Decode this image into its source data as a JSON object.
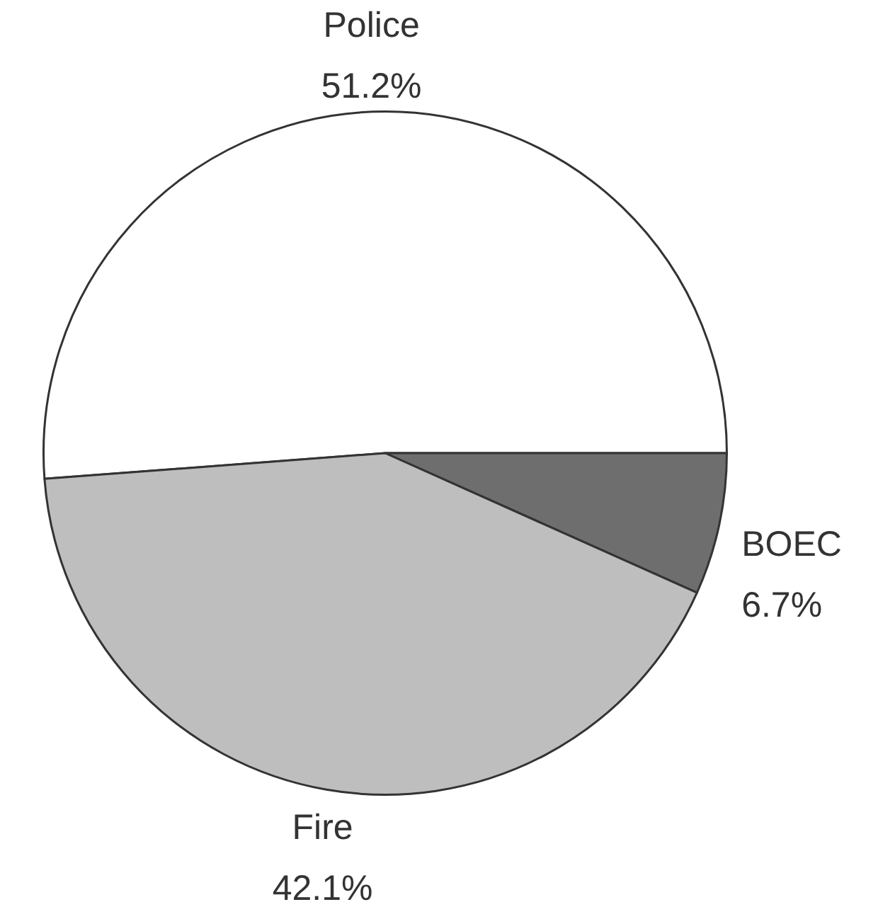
{
  "chart_data": {
    "type": "pie",
    "categories": [
      "Police",
      "BOEC",
      "Fire"
    ],
    "values": [
      51.2,
      6.7,
      42.1
    ],
    "colors": [
      "#ffffff",
      "#6e6e6e",
      "#bebebe"
    ],
    "value_labels": [
      "51.2%",
      "6.7%",
      "42.1%"
    ]
  }
}
